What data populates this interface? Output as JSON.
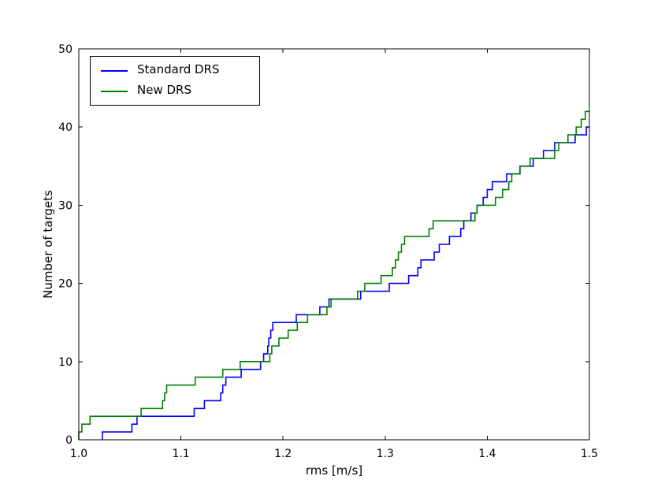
{
  "figure": {
    "background": "#ffffff",
    "spine_color": "#000000"
  },
  "chart_data": {
    "type": "line",
    "subtype": "cumulative-step",
    "title": "",
    "xlabel": "rms [m/s]",
    "ylabel": "Number of targets",
    "xlim": [
      1.0,
      1.5
    ],
    "ylim": [
      0,
      50
    ],
    "xticks": [
      1.0,
      1.1,
      1.2,
      1.3,
      1.4,
      1.5
    ],
    "xtick_labels": [
      "1.0",
      "1.1",
      "1.2",
      "1.3",
      "1.4",
      "1.5"
    ],
    "yticks": [
      0,
      10,
      20,
      30,
      40,
      50
    ],
    "ytick_labels": [
      "0",
      "10",
      "20",
      "30",
      "40",
      "50"
    ],
    "grid": false,
    "legend": {
      "position": "upper left"
    },
    "series": [
      {
        "name": "Standard DRS",
        "color": "#0000ff",
        "start_value": 0,
        "final_value": 40,
        "steps": [
          [
            1.023,
            1
          ],
          [
            1.052,
            2
          ],
          [
            1.057,
            3
          ],
          [
            1.113,
            4
          ],
          [
            1.123,
            5
          ],
          [
            1.139,
            6
          ],
          [
            1.141,
            7
          ],
          [
            1.144,
            8
          ],
          [
            1.159,
            9
          ],
          [
            1.178,
            10
          ],
          [
            1.181,
            11
          ],
          [
            1.185,
            12
          ],
          [
            1.186,
            13
          ],
          [
            1.188,
            14
          ],
          [
            1.19,
            15
          ],
          [
            1.213,
            16
          ],
          [
            1.236,
            17
          ],
          [
            1.245,
            18
          ],
          [
            1.276,
            19
          ],
          [
            1.304,
            20
          ],
          [
            1.323,
            21
          ],
          [
            1.332,
            22
          ],
          [
            1.335,
            23
          ],
          [
            1.348,
            24
          ],
          [
            1.353,
            25
          ],
          [
            1.363,
            26
          ],
          [
            1.374,
            27
          ],
          [
            1.377,
            28
          ],
          [
            1.384,
            29
          ],
          [
            1.39,
            30
          ],
          [
            1.396,
            31
          ],
          [
            1.4,
            32
          ],
          [
            1.405,
            33
          ],
          [
            1.419,
            34
          ],
          [
            1.432,
            35
          ],
          [
            1.445,
            36
          ],
          [
            1.455,
            37
          ],
          [
            1.466,
            38
          ],
          [
            1.486,
            39
          ],
          [
            1.497,
            40
          ]
        ]
      },
      {
        "name": "New DRS",
        "color": "#008000",
        "start_value": 0,
        "final_value": 42,
        "steps": [
          [
            1.0,
            1
          ],
          [
            1.003,
            2
          ],
          [
            1.011,
            3
          ],
          [
            1.061,
            4
          ],
          [
            1.082,
            5
          ],
          [
            1.084,
            6
          ],
          [
            1.086,
            7
          ],
          [
            1.114,
            8
          ],
          [
            1.141,
            9
          ],
          [
            1.158,
            10
          ],
          [
            1.187,
            11
          ],
          [
            1.189,
            12
          ],
          [
            1.196,
            13
          ],
          [
            1.205,
            14
          ],
          [
            1.214,
            15
          ],
          [
            1.224,
            16
          ],
          [
            1.243,
            17
          ],
          [
            1.247,
            18
          ],
          [
            1.273,
            19
          ],
          [
            1.28,
            20
          ],
          [
            1.296,
            21
          ],
          [
            1.307,
            22
          ],
          [
            1.31,
            23
          ],
          [
            1.313,
            24
          ],
          [
            1.316,
            25
          ],
          [
            1.319,
            26
          ],
          [
            1.343,
            27
          ],
          [
            1.347,
            28
          ],
          [
            1.388,
            29
          ],
          [
            1.39,
            30
          ],
          [
            1.408,
            31
          ],
          [
            1.415,
            32
          ],
          [
            1.421,
            33
          ],
          [
            1.424,
            34
          ],
          [
            1.432,
            35
          ],
          [
            1.442,
            36
          ],
          [
            1.466,
            37
          ],
          [
            1.47,
            38
          ],
          [
            1.479,
            39
          ],
          [
            1.487,
            40
          ],
          [
            1.492,
            41
          ],
          [
            1.496,
            42
          ]
        ]
      }
    ]
  }
}
